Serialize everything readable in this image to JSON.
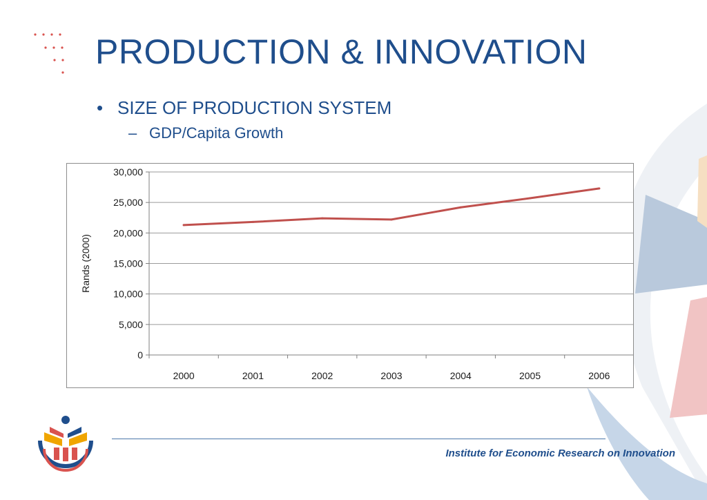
{
  "slide": {
    "title": "PRODUCTION & INNOVATION",
    "bullet": "SIZE OF PRODUCTION SYSTEM",
    "sub_bullet": "GDP/Capita Growth",
    "footer": "Institute for Economic Research on Innovation"
  },
  "chart_data": {
    "type": "line",
    "x": [
      "2000",
      "2001",
      "2002",
      "2003",
      "2004",
      "2005",
      "2006"
    ],
    "series": [
      {
        "values": [
          21300,
          21800,
          22400,
          22200,
          24200,
          25700,
          27300
        ],
        "color": "#c0504d"
      }
    ],
    "ylabel": "Rands (2000)",
    "xlabel": "",
    "ylim": [
      0,
      30000
    ],
    "yticks": [
      0,
      5000,
      10000,
      15000,
      20000,
      25000,
      30000
    ],
    "ytick_labels": [
      "0",
      "5,000",
      "10,000",
      "15,000",
      "20,000",
      "25,000",
      "30,000"
    ],
    "grid": true,
    "legend": "none"
  }
}
